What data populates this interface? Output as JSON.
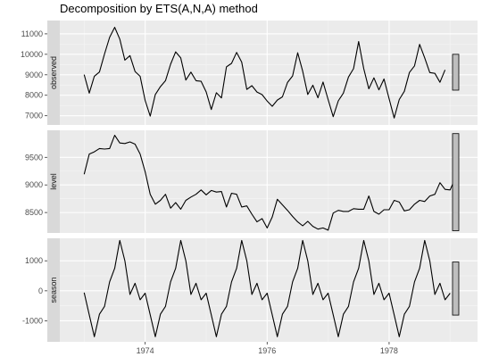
{
  "chart_data": {
    "type": "line",
    "title": "Decomposition by ETS(A,N,A) method",
    "x_start": 1973.0,
    "x_step": 0.08333333,
    "xlim": [
      1972.6,
      1979.45
    ],
    "x_ticks": [
      1974,
      1976,
      1978
    ],
    "x_tick_labels": [
      "1974",
      "1976",
      "1978"
    ],
    "grid": true,
    "panels": [
      {
        "name": "observed",
        "ylim": [
          6550,
          11650
        ],
        "y_ticks": [
          7000,
          8000,
          9000,
          10000,
          11000
        ],
        "y_tick_labels": [
          "7000",
          "8000",
          "9000",
          "10000",
          "11000"
        ],
        "values": [
          9007,
          8106,
          8928,
          9137,
          10017,
          10826,
          11317,
          10744,
          9713,
          9938,
          9161,
          8927,
          7750,
          6981,
          8038,
          8422,
          8714,
          9512,
          10120,
          9823,
          8743,
          9129,
          8710,
          8680,
          8162,
          7306,
          8124,
          7870,
          9387,
          9556,
          10093,
          9620,
          8285,
          8466,
          8160,
          8034,
          7717,
          7461,
          7767,
          7925,
          8623,
          8945,
          10078,
          9179,
          8037,
          8488,
          7874,
          8647,
          7792,
          6957,
          7726,
          8106,
          8890,
          9299,
          10625,
          9302,
          8314,
          8850,
          8265,
          8796,
          7836,
          6892,
          7791,
          8192,
          9115,
          9434,
          10484,
          9827,
          9110,
          9070,
          8633,
          9240
        ],
        "range_bar": [
          8250,
          10000
        ]
      },
      {
        "name": "level",
        "ylim": [
          8130,
          9990
        ],
        "y_ticks": [
          8500,
          9000,
          9500
        ],
        "y_tick_labels": [
          "8500",
          "9000",
          "9500"
        ],
        "values": [
          9195,
          9560,
          9600,
          9660,
          9650,
          9660,
          9900,
          9760,
          9750,
          9780,
          9740,
          9560,
          9240,
          8830,
          8650,
          8720,
          8830,
          8580,
          8680,
          8560,
          8720,
          8780,
          8830,
          8910,
          8820,
          8900,
          8870,
          8880,
          8600,
          8850,
          8830,
          8600,
          8620,
          8470,
          8330,
          8390,
          8220,
          8420,
          8740,
          8640,
          8540,
          8430,
          8330,
          8260,
          8340,
          8250,
          8200,
          8220,
          8180,
          8490,
          8540,
          8520,
          8520,
          8570,
          8560,
          8560,
          8800,
          8520,
          8470,
          8550,
          8550,
          8720,
          8690,
          8530,
          8550,
          8650,
          8720,
          8700,
          8800,
          8830,
          9040,
          8920,
          8910,
          9120
        ],
        "range_bar": [
          8170,
          9930
        ]
      },
      {
        "name": "season",
        "ylim": [
          -1700,
          1750
        ],
        "y_ticks": [
          -1000,
          0,
          1000
        ],
        "y_tick_labels": [
          "-1000",
          "0",
          "1000"
        ],
        "values": [
          -60,
          -800,
          -1530,
          -780,
          -520,
          300,
          750,
          1680,
          1000,
          -120,
          250,
          -300,
          -80,
          -800,
          -1530,
          -780,
          -520,
          300,
          750,
          1680,
          1000,
          -120,
          250,
          -300,
          -80,
          -800,
          -1530,
          -780,
          -520,
          300,
          750,
          1680,
          1000,
          -120,
          250,
          -300,
          -80,
          -800,
          -1530,
          -780,
          -520,
          300,
          750,
          1680,
          1000,
          -120,
          250,
          -300,
          -80,
          -800,
          -1530,
          -780,
          -520,
          300,
          750,
          1680,
          1000,
          -120,
          250,
          -300,
          -80,
          -800,
          -1530,
          -780,
          -520,
          300,
          750,
          1680,
          1000,
          -120,
          250,
          -300,
          -80
        ],
        "range_bar": [
          -810,
          960
        ]
      }
    ]
  }
}
